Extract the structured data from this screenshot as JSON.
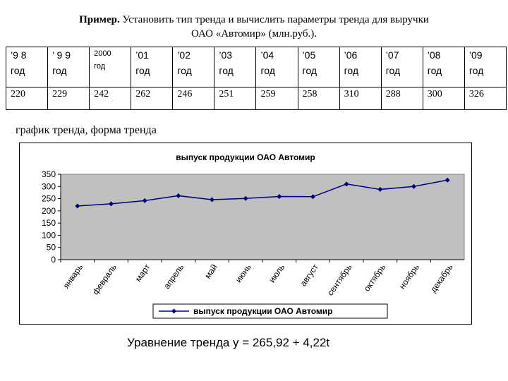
{
  "header": {
    "title_label": "Пример.",
    "title_line1": " Установить тип тренда и вычислить параметры тренда для выручки",
    "title_line2": "ОАО «Автомир» (млн.руб.)."
  },
  "table": {
    "years": [
      {
        "top": "’9  8",
        "bottom": "год"
      },
      {
        "top": "’  9  9",
        "bottom": "год"
      },
      {
        "top": "2000",
        "bottom": "год",
        "small": true
      },
      {
        "top": "’01",
        "bottom": "год"
      },
      {
        "top": "’02",
        "bottom": "год"
      },
      {
        "top": "’03",
        "bottom": "год"
      },
      {
        "top": "’04",
        "bottom": "год"
      },
      {
        "top": "’05",
        "bottom": "год"
      },
      {
        "top": "’06",
        "bottom": "год"
      },
      {
        "top": "’07",
        "bottom": "год"
      },
      {
        "top": "’08",
        "bottom": "год"
      },
      {
        "top": "’09",
        "bottom": "год"
      }
    ],
    "values": [
      "220",
      "229",
      "242",
      "262",
      "246",
      "251",
      "259",
      "258",
      "310",
      "288",
      "300",
      "326"
    ]
  },
  "subtitle": "график тренда, форма тренда",
  "equation": "Уравнение тренда y = 265,92 + 4,22t",
  "chart_data": {
    "type": "line",
    "title": "выпуск продукции ОАО Автомир",
    "categories": [
      "январь",
      "февраль",
      "март",
      "апрель",
      "май",
      "июнь",
      "июль",
      "август",
      "сентябрь",
      "октябрь",
      "ноябрь",
      "декабрь"
    ],
    "series": [
      {
        "name": "выпуск продукции ОАО Автомир",
        "values": [
          220,
          229,
          242,
          262,
          246,
          251,
          259,
          258,
          310,
          288,
          300,
          326
        ]
      }
    ],
    "yticks": [
      "0",
      "50",
      "100",
      "150",
      "200",
      "250",
      "300",
      "350"
    ],
    "ylim": [
      0,
      350
    ],
    "grid": false,
    "legend": "bottom",
    "colors": {
      "line": "#00007f",
      "plot_bg": "#c0c0c0"
    }
  }
}
